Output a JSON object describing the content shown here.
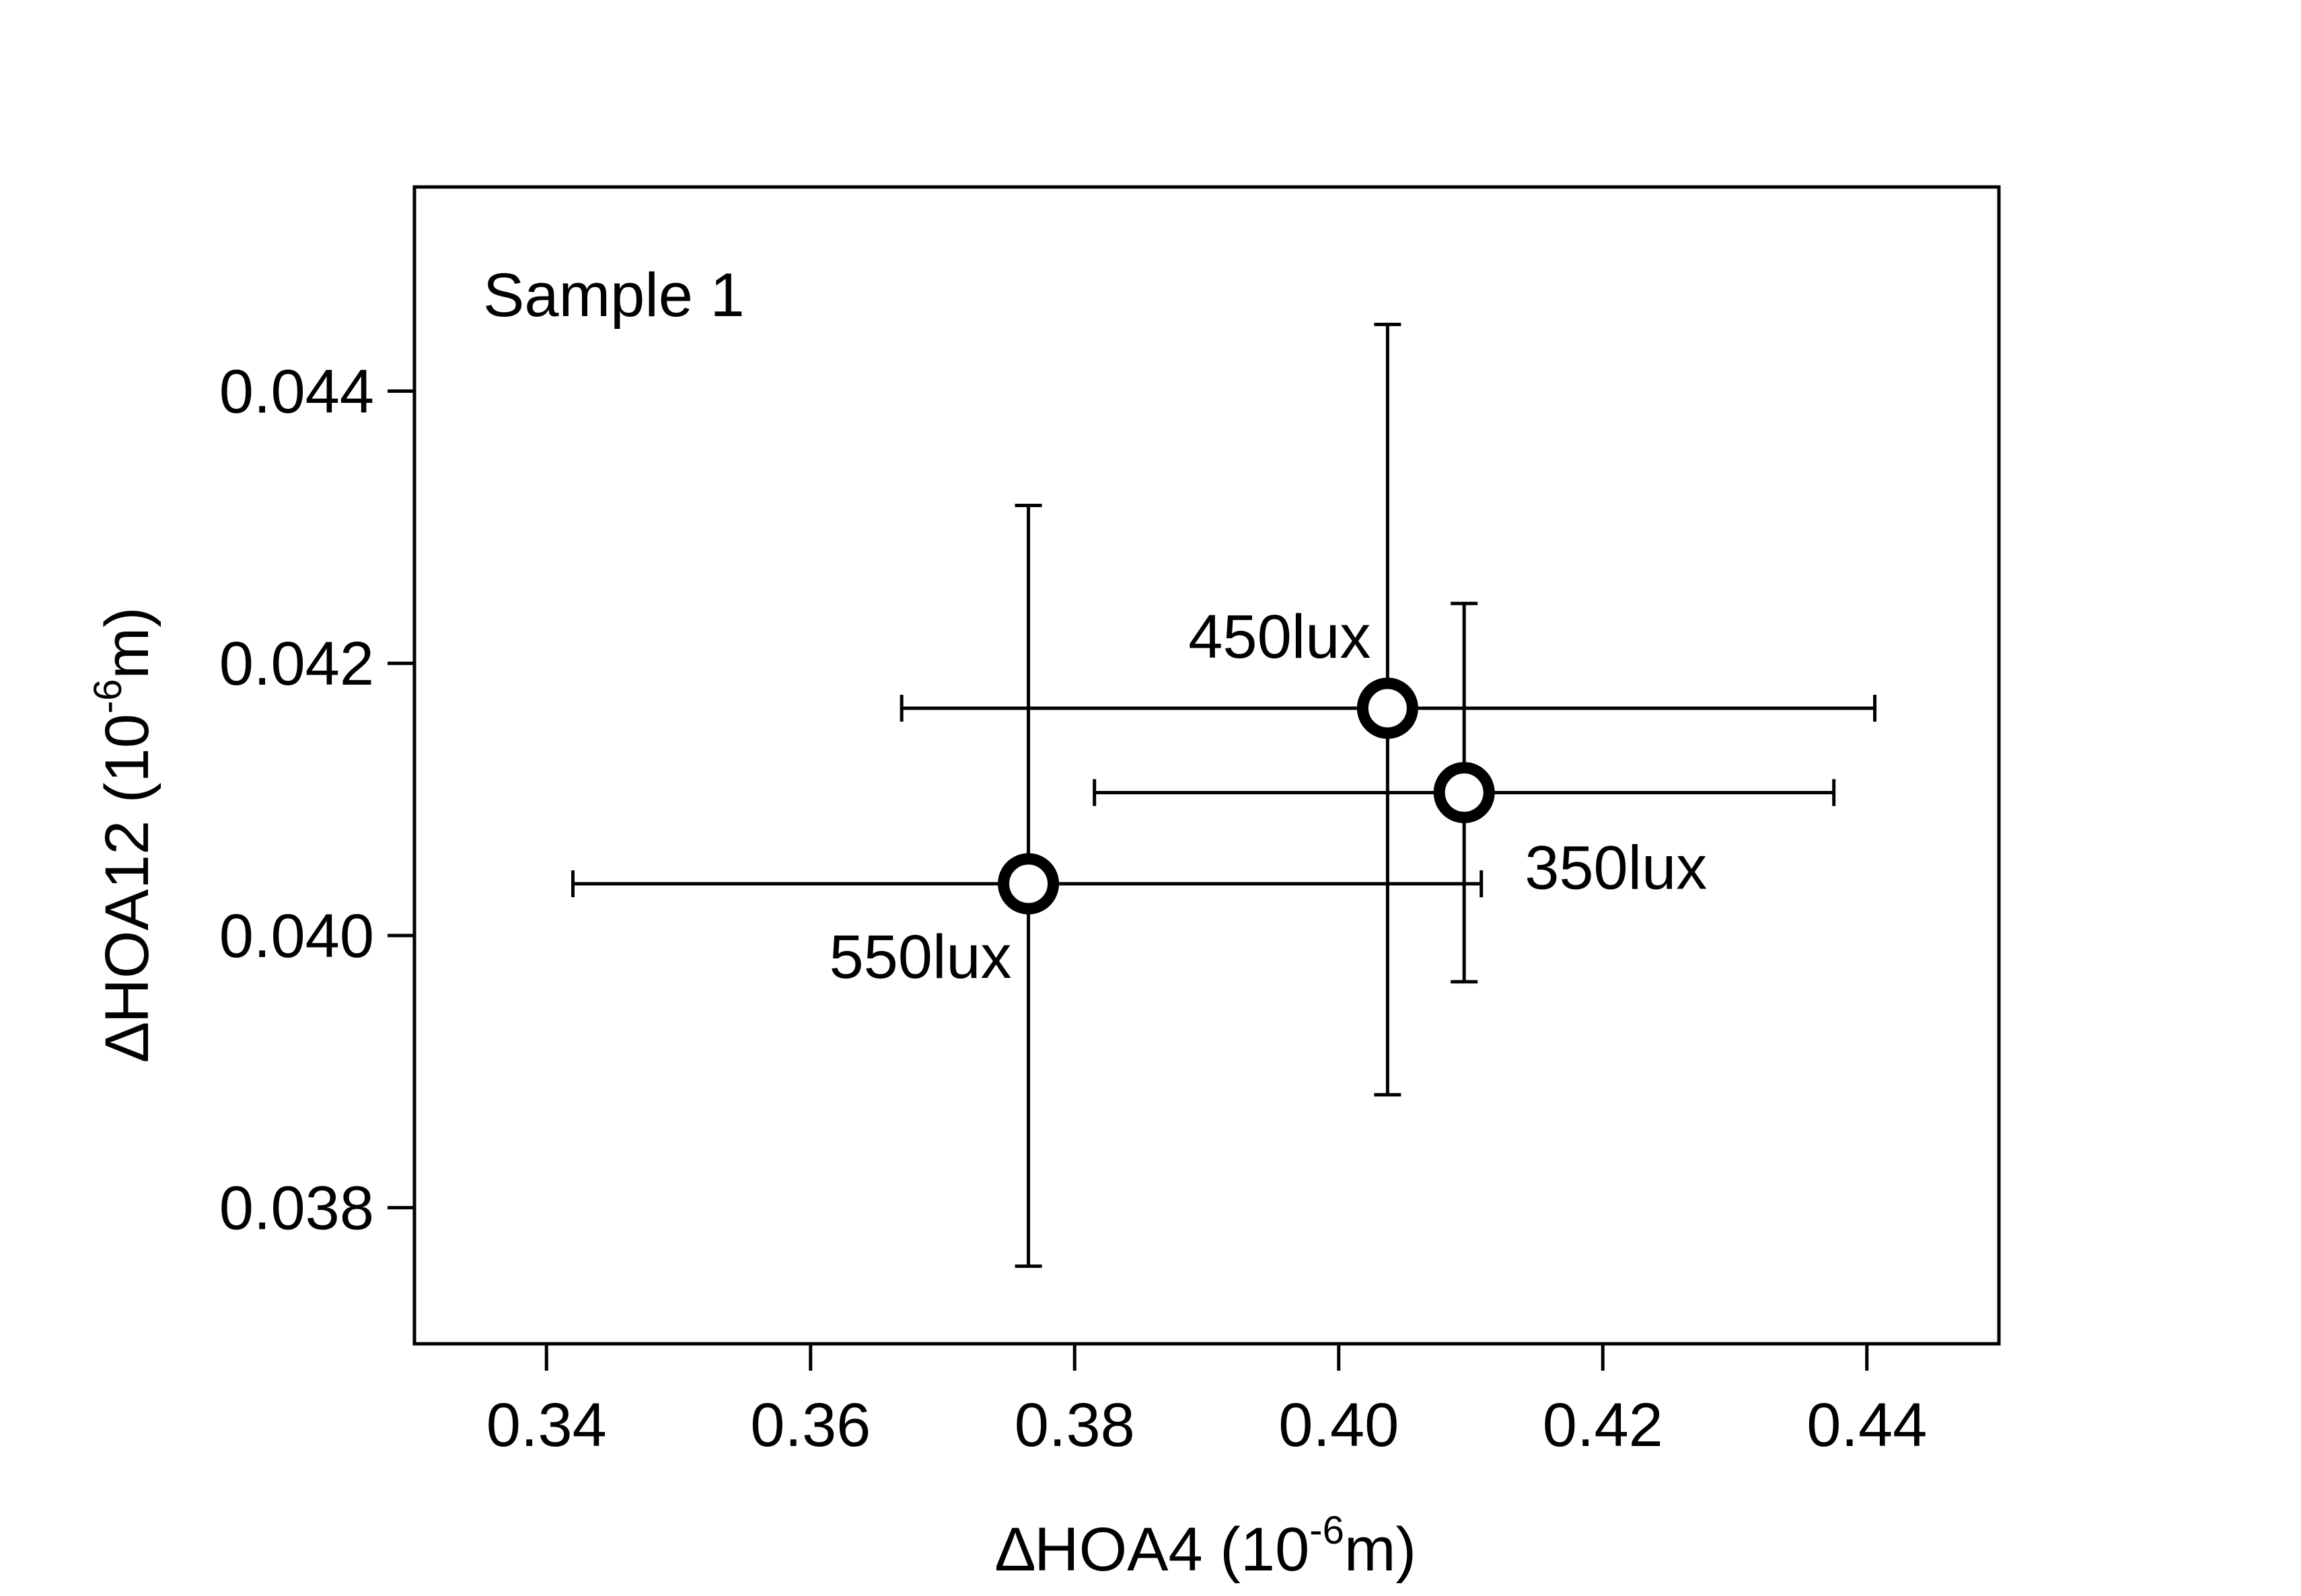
{
  "chart_data": {
    "type": "scatter",
    "title": "",
    "annotation": "Sample 1",
    "xlabel": {
      "prefix": "∆HOA4 (10",
      "superscript": "-6",
      "suffix": "m)"
    },
    "ylabel": {
      "prefix": "∆HOA12 (10",
      "superscript": "-6",
      "suffix": "m)"
    },
    "xlim": [
      0.33,
      0.45
    ],
    "ylim": [
      0.037,
      0.0455
    ],
    "x_ticks": [
      0.34,
      0.36,
      0.38,
      0.4,
      0.42,
      0.44
    ],
    "x_tick_labels": [
      "0.34",
      "0.36",
      "0.38",
      "0.40",
      "0.42",
      "0.44"
    ],
    "y_ticks": [
      0.038,
      0.04,
      0.042,
      0.044
    ],
    "y_tick_labels": [
      "0.038",
      "0.040",
      "0.042",
      "0.044"
    ],
    "grid": false,
    "points": [
      {
        "label": "450lux",
        "x": 0.4037,
        "y": 0.04167,
        "x_err": [
          0.3669,
          0.4406
        ],
        "y_err": [
          0.03883,
          0.04449
        ],
        "label_position": "upper-left"
      },
      {
        "label": "350lux",
        "x": 0.4095,
        "y": 0.04105,
        "x_err": [
          0.3815,
          0.4375
        ],
        "y_err": [
          0.03966,
          0.04244
        ],
        "label_position": "lower-right"
      },
      {
        "label": "550lux",
        "x": 0.3765,
        "y": 0.04038,
        "x_err": [
          0.342,
          0.4108
        ],
        "y_err": [
          0.03757,
          0.04316
        ],
        "label_position": "lower-left"
      }
    ]
  }
}
